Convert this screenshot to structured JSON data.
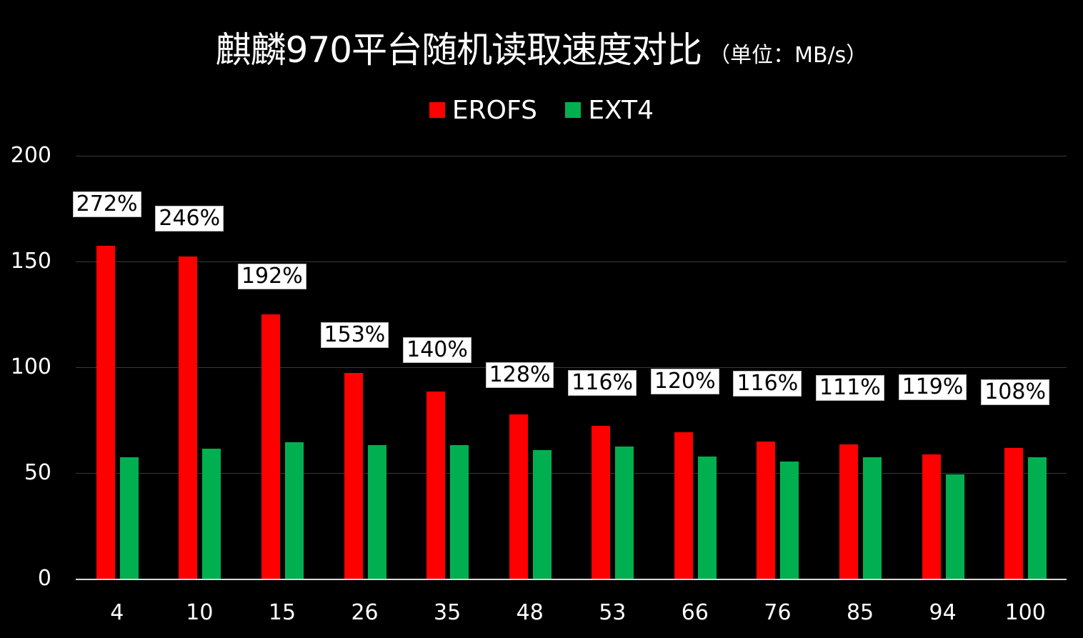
{
  "title": {
    "main": "麒麟970平台随机读取速度对比",
    "unit": "（单位：MB/s）"
  },
  "legend": [
    {
      "label": "EROFS",
      "color": "#ff0000"
    },
    {
      "label": "EXT4",
      "color": "#00b050"
    }
  ],
  "y_axis": {
    "ticks": [
      "200",
      "150",
      "100",
      "50",
      "0"
    ]
  },
  "colors": {
    "background": "#000000",
    "erofs": "#ff0000",
    "ext4": "#00b050",
    "gridline": "#3a3a3a",
    "axis": "#d9d9d9"
  },
  "chart_data": {
    "type": "bar",
    "title": "麒麟970平台随机读取速度对比（单位：MB/s）",
    "xlabel": "",
    "ylabel": "",
    "ylim": [
      0,
      200
    ],
    "yticks": [
      0,
      50,
      100,
      150,
      200
    ],
    "grid": true,
    "legend_position": "top",
    "categories": [
      "4",
      "10",
      "15",
      "26",
      "35",
      "48",
      "53",
      "66",
      "76",
      "85",
      "94",
      "100"
    ],
    "series": [
      {
        "name": "EROFS",
        "color": "#ff0000",
        "values": [
          157.8,
          152.7,
          125.3,
          97.6,
          88.9,
          78.0,
          72.6,
          69.6,
          65.2,
          63.9,
          59.1,
          62.2
        ]
      },
      {
        "name": "EXT4",
        "color": "#00b050",
        "values": [
          57.8,
          61.8,
          64.9,
          63.5,
          63.5,
          61.0,
          62.8,
          58.1,
          55.7,
          57.8,
          49.7,
          57.8
        ]
      }
    ],
    "annotations": [
      "272%",
      "246%",
      "192%",
      "153%",
      "140%",
      "128%",
      "116%",
      "120%",
      "116%",
      "111%",
      "119%",
      "108%"
    ]
  }
}
